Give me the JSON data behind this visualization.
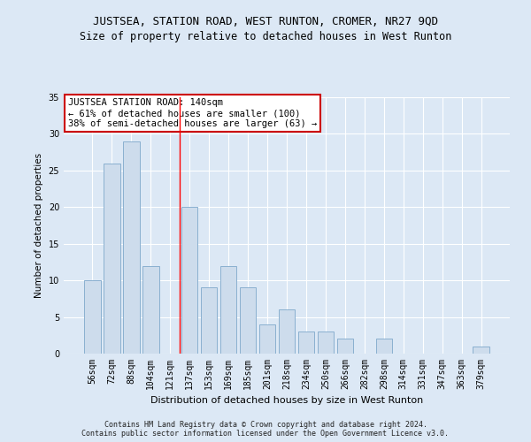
{
  "title": "JUSTSEA, STATION ROAD, WEST RUNTON, CROMER, NR27 9QD",
  "subtitle": "Size of property relative to detached houses in West Runton",
  "xlabel": "Distribution of detached houses by size in West Runton",
  "ylabel": "Number of detached properties",
  "categories": [
    "56sqm",
    "72sqm",
    "88sqm",
    "104sqm",
    "121sqm",
    "137sqm",
    "153sqm",
    "169sqm",
    "185sqm",
    "201sqm",
    "218sqm",
    "234sqm",
    "250sqm",
    "266sqm",
    "282sqm",
    "298sqm",
    "314sqm",
    "331sqm",
    "347sqm",
    "363sqm",
    "379sqm"
  ],
  "values": [
    10,
    26,
    29,
    12,
    0,
    20,
    9,
    12,
    9,
    4,
    6,
    3,
    3,
    2,
    0,
    2,
    0,
    0,
    0,
    0,
    1
  ],
  "bar_color": "#cddcec",
  "bar_edge_color": "#8ab0d0",
  "vline_x": 4.5,
  "annotation_text": "JUSTSEA STATION ROAD: 140sqm\n← 61% of detached houses are smaller (100)\n38% of semi-detached houses are larger (63) →",
  "annotation_box_facecolor": "#ffffff",
  "annotation_box_edgecolor": "#cc0000",
  "ylim": [
    0,
    35
  ],
  "yticks": [
    0,
    5,
    10,
    15,
    20,
    25,
    30,
    35
  ],
  "fig_facecolor": "#dce8f5",
  "ax_facecolor": "#dce8f5",
  "grid_color": "#ffffff",
  "footer_line1": "Contains HM Land Registry data © Crown copyright and database right 2024.",
  "footer_line2": "Contains public sector information licensed under the Open Government Licence v3.0.",
  "title_fontsize": 9,
  "subtitle_fontsize": 8.5,
  "xlabel_fontsize": 8,
  "ylabel_fontsize": 7.5,
  "tick_fontsize": 7,
  "annotation_fontsize": 7.5,
  "footer_fontsize": 6
}
